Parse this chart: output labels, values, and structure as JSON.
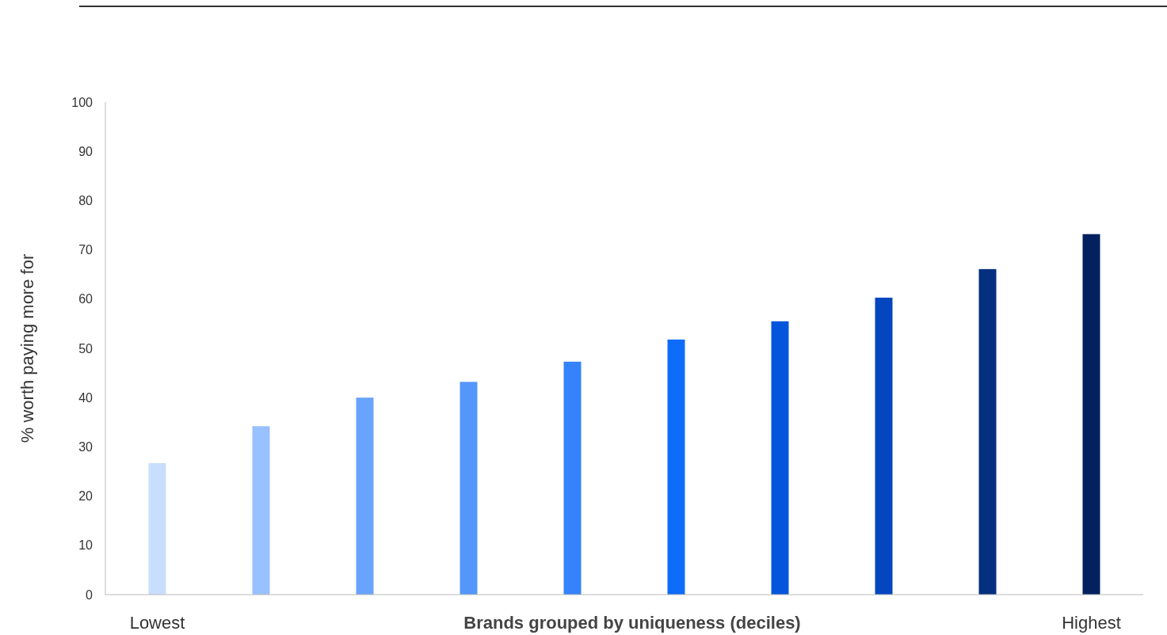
{
  "chart_data": {
    "type": "bar",
    "xlabel": "Brands grouped by uniqueness (deciles)",
    "ylabel": "% worth paying more for",
    "categories": [
      "Lowest",
      null,
      null,
      null,
      null,
      null,
      null,
      null,
      null,
      "Highest"
    ],
    "values": [
      26.7,
      34.2,
      40,
      43.2,
      47.3,
      51.8,
      55.5,
      60.3,
      66.1,
      73.2
    ],
    "colors": [
      "#c9ddfc",
      "#99c0ff",
      "#6aa3fb",
      "#5596fb",
      "#3483fb",
      "#0f6cf9",
      "#0356dc",
      "#0446bf",
      "#04307f",
      "#03215e"
    ],
    "ylim": [
      0,
      100
    ],
    "yticks": [
      0,
      10,
      20,
      30,
      40,
      50,
      60,
      70,
      80,
      90,
      100
    ],
    "grid": false
  }
}
